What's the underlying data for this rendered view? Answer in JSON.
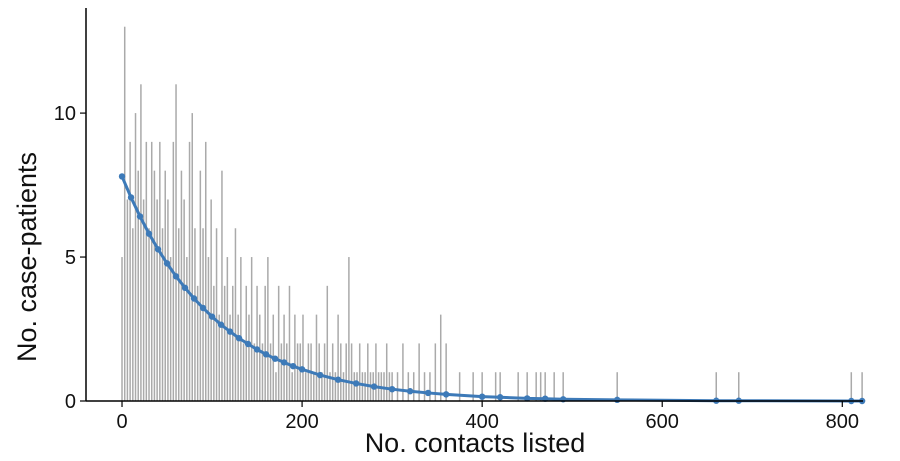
{
  "chart_data": {
    "type": "bar",
    "xlabel": "No. contacts listed",
    "ylabel": "No. case-patients",
    "bar_color": "#aaaaaa",
    "fit_color": "#3d7ab8",
    "xlim": [
      -40,
      823
    ],
    "ylim": [
      0,
      13.65
    ],
    "xticks": [
      0,
      200,
      400,
      600,
      800
    ],
    "yticks": [
      0,
      5,
      10
    ],
    "x": [
      0,
      3,
      6,
      9,
      12,
      15,
      18,
      21,
      24,
      27,
      30,
      33,
      36,
      39,
      42,
      45,
      48,
      51,
      54,
      57,
      60,
      63,
      66,
      69,
      72,
      75,
      78,
      81,
      84,
      87,
      90,
      93,
      96,
      99,
      102,
      105,
      108,
      111,
      114,
      117,
      120,
      123,
      126,
      129,
      132,
      135,
      138,
      141,
      144,
      147,
      150,
      153,
      156,
      159,
      162,
      165,
      168,
      171,
      174,
      177,
      180,
      183,
      186,
      189,
      192,
      195,
      198,
      201,
      204,
      207,
      210,
      213,
      216,
      219,
      222,
      225,
      228,
      231,
      234,
      237,
      240,
      243,
      246,
      249,
      252,
      255,
      258,
      261,
      264,
      267,
      270,
      273,
      276,
      279,
      282,
      285,
      288,
      291,
      294,
      297,
      300,
      306,
      312,
      318,
      324,
      330,
      336,
      342,
      348,
      354,
      360,
      375,
      390,
      400,
      415,
      420,
      440,
      450,
      460,
      465,
      470,
      480,
      490,
      550,
      660,
      685,
      810,
      822
    ],
    "values": [
      5,
      13,
      7,
      9,
      6,
      10,
      8,
      11,
      7,
      9,
      6,
      9,
      8,
      7,
      9,
      6,
      8,
      7,
      5,
      9,
      11,
      6,
      8,
      7,
      5,
      9,
      10,
      6,
      4,
      8,
      6,
      9,
      5,
      7,
      4,
      6,
      3,
      8,
      4,
      5,
      3,
      4,
      6,
      3,
      5,
      2,
      4,
      3,
      5,
      2,
      4,
      3,
      2,
      4,
      5,
      2,
      3,
      1,
      4,
      2,
      3,
      2,
      4,
      1,
      3,
      2,
      2,
      3,
      1,
      2,
      2,
      1,
      3,
      2,
      1,
      2,
      4,
      1,
      2,
      1,
      3,
      2,
      1,
      2,
      5,
      2,
      1,
      1,
      2,
      1,
      1,
      2,
      1,
      1,
      2,
      1,
      1,
      1,
      2,
      1,
      1,
      1,
      2,
      1,
      1,
      2,
      1,
      1,
      2,
      3,
      2,
      1,
      1,
      1,
      1,
      1,
      1,
      1,
      1,
      1,
      1,
      1,
      1,
      1,
      1,
      1,
      1,
      1
    ],
    "fit_x": [
      0,
      10,
      20,
      30,
      40,
      50,
      60,
      70,
      80,
      90,
      100,
      110,
      120,
      130,
      140,
      150,
      160,
      170,
      180,
      190,
      200,
      220,
      240,
      260,
      280,
      300,
      320,
      340,
      360,
      400,
      420,
      450,
      470,
      490,
      550,
      660,
      685,
      810,
      822
    ],
    "fit_values": [
      7.8,
      7.07,
      6.41,
      5.81,
      5.27,
      4.78,
      4.33,
      3.93,
      3.56,
      3.23,
      2.93,
      2.65,
      2.41,
      2.18,
      1.98,
      1.79,
      1.62,
      1.47,
      1.34,
      1.21,
      1.1,
      0.9,
      0.74,
      0.61,
      0.5,
      0.41,
      0.34,
      0.28,
      0.23,
      0.15,
      0.13,
      0.09,
      0.08,
      0.06,
      0.04,
      0.01,
      0.01,
      0,
      0
    ]
  }
}
